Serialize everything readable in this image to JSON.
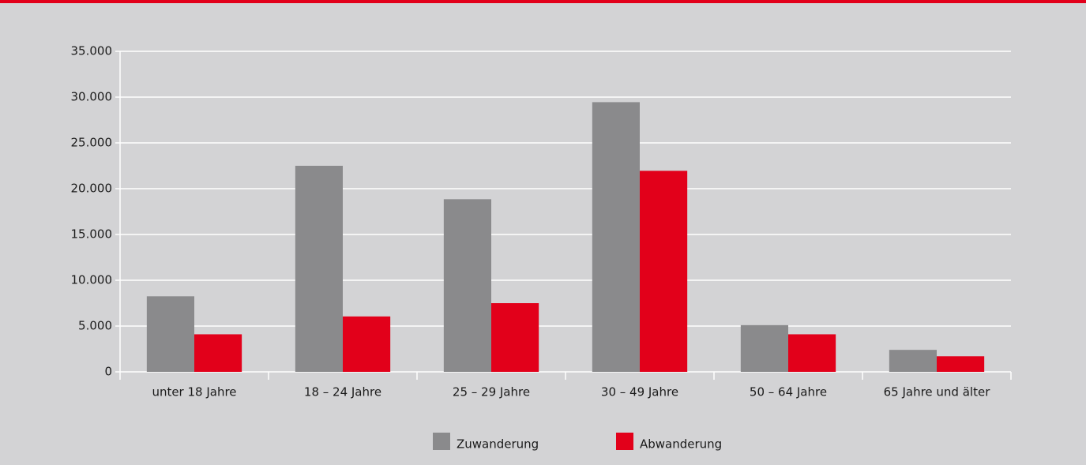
{
  "chart_data": {
    "type": "bar",
    "categories": [
      "unter 18 Jahre",
      "18 – 24 Jahre",
      "25 – 29 Jahre",
      "30 – 49 Jahre",
      "50 – 64 Jahre",
      "65 Jahre und älter"
    ],
    "series": [
      {
        "name": "Zuwanderung",
        "color": "#8a8a8c",
        "values": [
          8250,
          22500,
          18850,
          29450,
          5100,
          2400
        ]
      },
      {
        "name": "Abwanderung",
        "color": "#e2001a",
        "values": [
          4100,
          6050,
          7500,
          21950,
          4100,
          1700
        ]
      }
    ],
    "ylim": [
      0,
      35000
    ],
    "yticks": [
      0,
      {
        "value": 5000,
        "label": "5.000"
      },
      {
        "value": 10000,
        "label": "10.000"
      },
      {
        "value": 15000,
        "label": "15.000"
      },
      {
        "value": 20000,
        "label": "20.000"
      },
      {
        "value": 25000,
        "label": "25.000"
      },
      {
        "value": 30000,
        "label": "30.000"
      },
      {
        "value": 35000,
        "label": "35.000"
      }
    ],
    "grid": true,
    "legend": "bottom"
  }
}
